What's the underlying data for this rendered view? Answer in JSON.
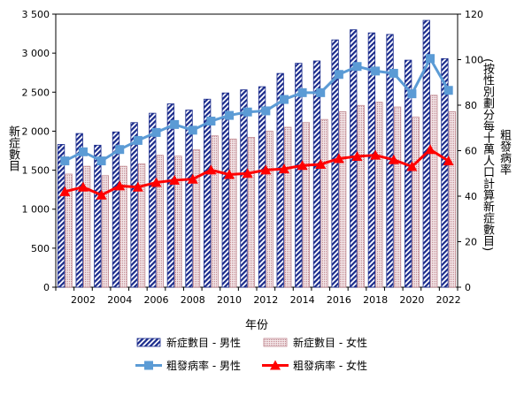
{
  "chart_data": {
    "type": "bar",
    "xlabel": "年份",
    "ylabel_left": "新症數目",
    "ylabel_right": [
      "粗發病率",
      "(按性別劃分每十萬人口計算新症數目)"
    ],
    "x": [
      2001,
      2002,
      2003,
      2004,
      2005,
      2006,
      2007,
      2008,
      2009,
      2010,
      2011,
      2012,
      2013,
      2014,
      2015,
      2016,
      2017,
      2018,
      2019,
      2020,
      2021,
      2022
    ],
    "x_tick_labels": [
      "2002",
      "2004",
      "2006",
      "2008",
      "2010",
      "2012",
      "2014",
      "2016",
      "2018",
      "2020",
      "2022"
    ],
    "ylim_left": [
      0,
      3500
    ],
    "y_ticks_left": [
      "0",
      "500",
      "1 000",
      "1 500",
      "2 000",
      "2 500",
      "3 000",
      "3 500"
    ],
    "ylim_right": [
      0,
      120
    ],
    "y_ticks_right": [
      "0",
      "20",
      "40",
      "60",
      "80",
      "100",
      "120"
    ],
    "series": [
      {
        "name": "新症數目 - 男性",
        "type": "bar",
        "axis": "left",
        "pattern": "diagonal-stripes",
        "color": "#1a2b8c",
        "values": [
          1830,
          1970,
          1820,
          1990,
          2110,
          2230,
          2350,
          2270,
          2410,
          2490,
          2530,
          2570,
          2740,
          2870,
          2900,
          3170,
          3300,
          3260,
          3240,
          2910,
          3420,
          2930
        ]
      },
      {
        "name": "新症數目 - 女性",
        "type": "bar",
        "axis": "left",
        "pattern": "fine-dots",
        "color": "#c08890",
        "values": [
          1450,
          1550,
          1430,
          1550,
          1580,
          1690,
          1680,
          1760,
          1940,
          1900,
          1920,
          2000,
          2050,
          2110,
          2150,
          2250,
          2330,
          2370,
          2310,
          2180,
          2460,
          2250
        ]
      },
      {
        "name": "粗發病率 - 男性",
        "type": "line",
        "axis": "right",
        "marker": "square",
        "color": "#5b9bd5",
        "values": [
          55.5,
          59.5,
          55.5,
          60.5,
          64.5,
          68,
          71.5,
          69,
          73,
          75.5,
          77,
          77.5,
          82.5,
          85.5,
          85.5,
          93.5,
          97,
          95,
          94,
          85,
          100.5,
          86.5
        ]
      },
      {
        "name": "粗發病率 - 女性",
        "type": "line",
        "axis": "right",
        "marker": "triangle",
        "color": "#ff0000",
        "values": [
          42,
          44,
          40.5,
          44.5,
          44,
          46,
          47,
          47.5,
          51.5,
          49.5,
          50,
          51.5,
          52,
          53.5,
          54,
          56.5,
          57.5,
          58,
          56,
          53,
          60.5,
          55.5
        ]
      }
    ],
    "legend_position": "bottom"
  }
}
